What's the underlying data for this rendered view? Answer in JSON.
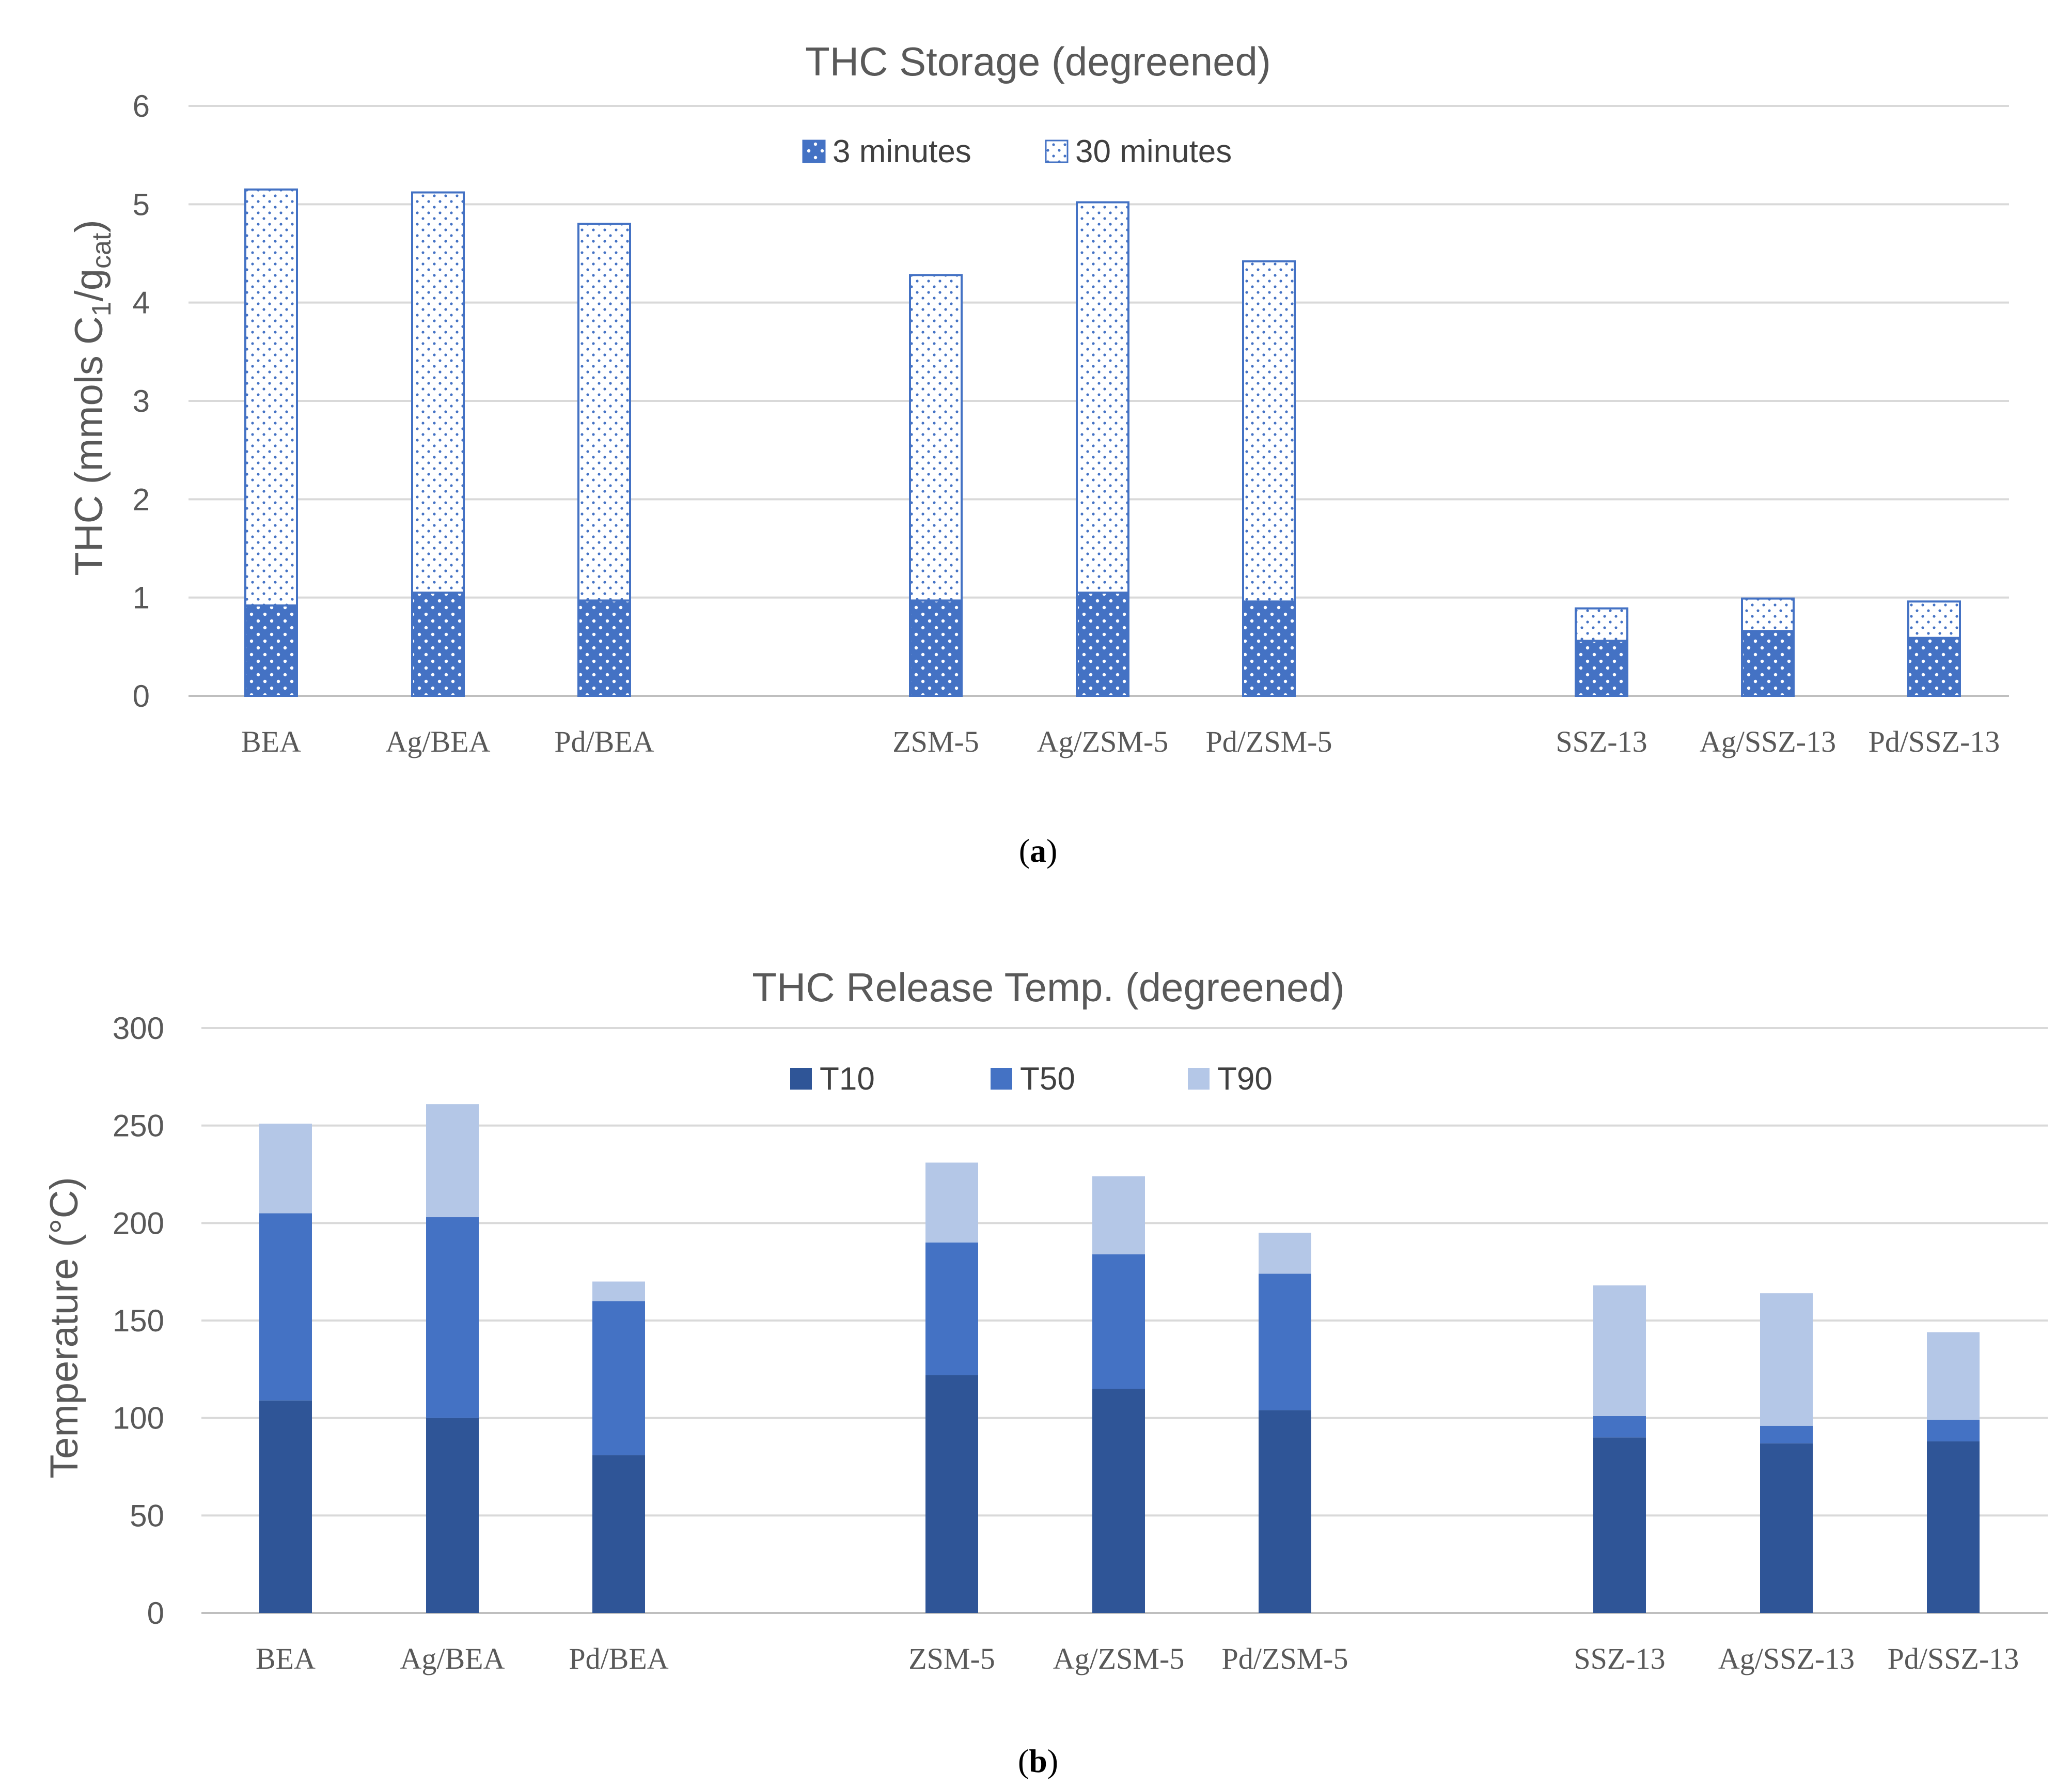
{
  "chart_data": [
    {
      "type": "bar",
      "stacked": true,
      "title": "THC Storage (degreened)",
      "ylabel": "THC (mmols C1/gcat)",
      "ylabel_parts": {
        "main": "THC (mmols C",
        "sub1": "1",
        "mid": "/g",
        "sub2": "cat",
        "end": ")"
      },
      "xlabel": "",
      "ylim": [
        0,
        6
      ],
      "yticks": [
        0,
        1,
        2,
        3,
        4,
        5,
        6
      ],
      "grid": true,
      "legend_position": "top-center",
      "caption": "a",
      "categories": [
        "BEA",
        "Ag/BEA",
        "Pd/BEA",
        "ZSM-5",
        "Ag/ZSM-5",
        "Pd/ZSM-5",
        "SSZ-13",
        "Ag/SSZ-13",
        "Pd/SSZ-13"
      ],
      "groups": [
        [
          0,
          1,
          2
        ],
        [
          3,
          4,
          5
        ],
        [
          6,
          7,
          8
        ]
      ],
      "series": [
        {
          "name": "3 minutes",
          "values": [
            0.92,
            1.05,
            0.97,
            0.97,
            1.05,
            0.96,
            0.56,
            0.66,
            0.59
          ],
          "color": "#4472c4",
          "pattern": "dense-dots"
        },
        {
          "name": "30 minutes",
          "values": [
            4.23,
            4.07,
            3.83,
            3.31,
            3.97,
            3.46,
            0.33,
            0.33,
            0.37
          ],
          "color": "#4472c4",
          "pattern": "sparse-dots"
        }
      ]
    },
    {
      "type": "bar",
      "stacked": true,
      "title": "THC Release Temp. (degreened)",
      "ylabel": "Temperature (°C)",
      "xlabel": "",
      "ylim": [
        0,
        300
      ],
      "yticks": [
        0,
        50,
        100,
        150,
        200,
        250,
        300
      ],
      "grid": true,
      "legend_position": "top-center",
      "caption": "b",
      "categories": [
        "BEA",
        "Ag/BEA",
        "Pd/BEA",
        "ZSM-5",
        "Ag/ZSM-5",
        "Pd/ZSM-5",
        "SSZ-13",
        "Ag/SSZ-13",
        "Pd/SSZ-13"
      ],
      "groups": [
        [
          0,
          1,
          2
        ],
        [
          3,
          4,
          5
        ],
        [
          6,
          7,
          8
        ]
      ],
      "series": [
        {
          "name": "T10",
          "values": [
            109,
            100,
            81,
            122,
            115,
            104,
            90,
            87,
            88
          ],
          "color": "#2f5597"
        },
        {
          "name": "T50",
          "values": [
            96,
            103,
            79,
            68,
            69,
            70,
            11,
            9,
            11
          ],
          "color": "#4472c4"
        },
        {
          "name": "T90",
          "values": [
            46,
            58,
            10,
            41,
            40,
            21,
            67,
            68,
            45
          ],
          "color": "#b4c7e7"
        }
      ]
    }
  ]
}
